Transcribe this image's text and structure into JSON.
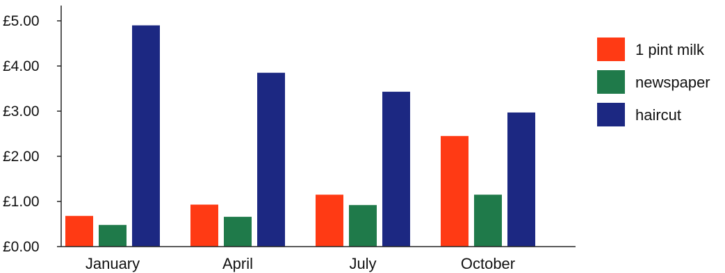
{
  "chart_data": {
    "type": "bar",
    "title": "",
    "xlabel": "",
    "ylabel": "",
    "categories": [
      "January",
      "April",
      "July",
      "October"
    ],
    "series": [
      {
        "name": "1 pint milk",
        "color": "#ff3a14",
        "values": [
          0.68,
          0.93,
          1.15,
          2.45
        ]
      },
      {
        "name": "newspaper",
        "color": "#1f7a4a",
        "values": [
          0.48,
          0.66,
          0.92,
          1.15
        ]
      },
      {
        "name": "haircut",
        "color": "#1c2882",
        "values": [
          4.9,
          3.85,
          3.43,
          2.97
        ]
      }
    ],
    "ylim": [
      0,
      5
    ],
    "yticks": [
      "£0.00",
      "£1.00",
      "£2.00",
      "£3.00",
      "£4.00",
      "£5.00"
    ],
    "grid": false,
    "legend_position": "right"
  }
}
